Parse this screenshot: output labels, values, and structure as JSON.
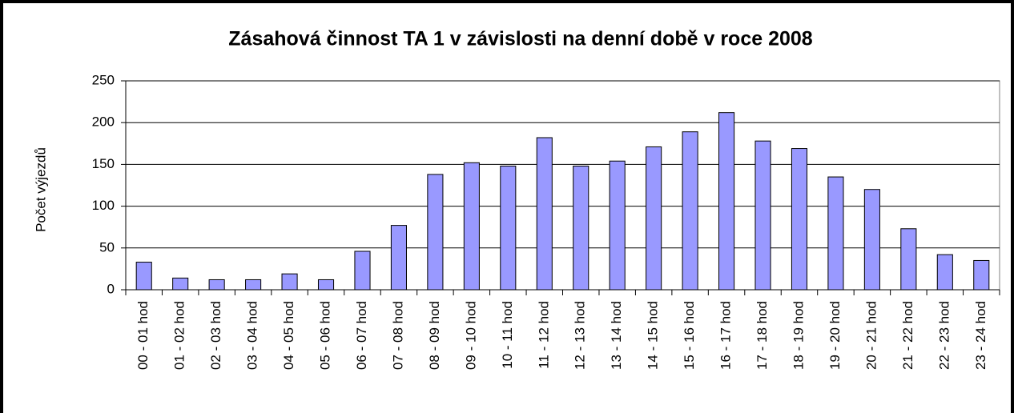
{
  "chart_data": {
    "type": "bar",
    "title": "Zásahová činnost TA 1 v závislosti na denní době v roce 2008",
    "y_label": "Počet výjezdů",
    "categories": [
      "00 - 01 hod",
      "01 - 02 hod",
      "02 - 03 hod",
      "03 - 04 hod",
      "04 - 05 hod",
      "05 - 06 hod",
      "06 - 07 hod",
      "07 - 08 hod",
      "08 - 09 hod",
      "09 - 10 hod",
      "10 - 11 hod",
      "11 - 12 hod",
      "12 - 13 hod",
      "13 - 14 hod",
      "14 - 15 hod",
      "15 - 16 hod",
      "16 - 17 hod",
      "17 - 18 hod",
      "18 - 19 hod",
      "19 - 20 hod",
      "20 - 21 hod",
      "21 - 22 hod",
      "22 - 23 hod",
      "23 - 24 hod"
    ],
    "values": [
      33,
      14,
      12,
      12,
      19,
      12,
      46,
      77,
      138,
      152,
      148,
      182,
      148,
      154,
      171,
      189,
      212,
      178,
      169,
      135,
      120,
      73,
      42,
      35
    ],
    "color": "#9999ff",
    "ylim": [
      0,
      250
    ],
    "yticks": [
      0,
      50,
      100,
      150,
      200,
      250
    ],
    "grid": true
  }
}
